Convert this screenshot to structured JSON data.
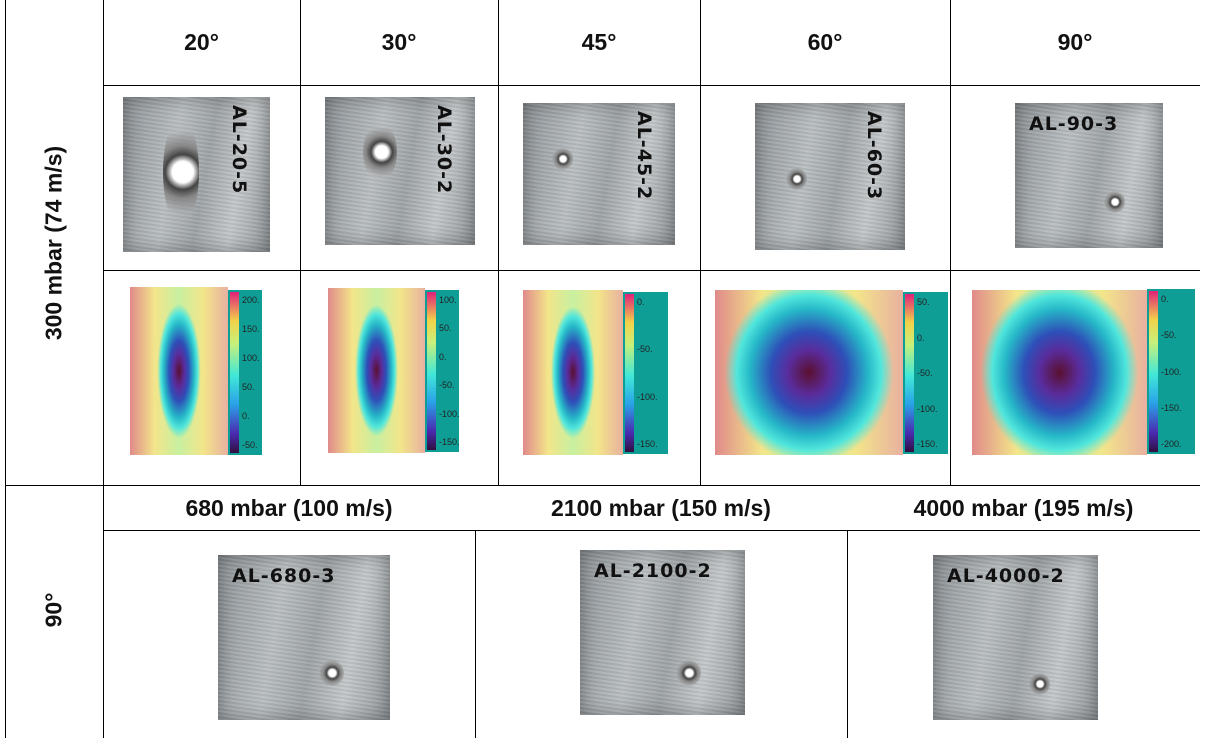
{
  "row_labels": {
    "top": "300 mbar (74 m/s)",
    "bottom": "90°"
  },
  "angle_headers": [
    "20°",
    "30°",
    "45°",
    "60°",
    "90°"
  ],
  "sample_labels": [
    "AL-20-5",
    "AL-30-2",
    "AL-45-2",
    "AL-60-3",
    "AL-90-3"
  ],
  "colorbars": [
    [
      "200.",
      "150.",
      "100.",
      "50.",
      "0.",
      "-50."
    ],
    [
      "100.",
      "50.",
      "0.",
      "-50.",
      "-100.",
      "-150."
    ],
    [
      "0.",
      "-50.",
      "-100.",
      "-150."
    ],
    [
      "50.",
      "0.",
      "-50.",
      "-100.",
      "-150."
    ],
    [
      "0.",
      "-50.",
      "-100.",
      "-150.",
      "-200."
    ]
  ],
  "pressure_headers": [
    "680 mbar (100 m/s)",
    "2100 mbar (150 m/s)",
    "4000 mbar (195 m/s)"
  ],
  "pressure_sample_labels": [
    "AL-680-3",
    "AL-2100-2",
    "AL-4000-2"
  ]
}
